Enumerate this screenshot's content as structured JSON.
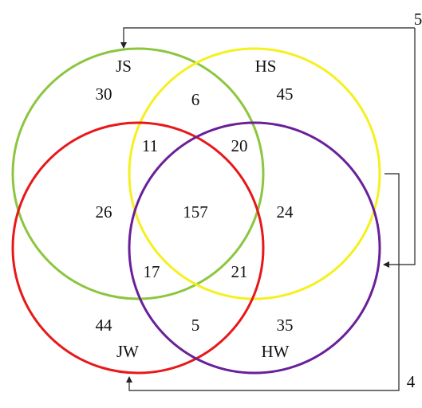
{
  "sets": [
    {
      "label": "JS",
      "color": "#8cc63f"
    },
    {
      "label": "HS",
      "color": "#f5f01e"
    },
    {
      "label": "JW",
      "color": "#e81818"
    },
    {
      "label": "HW",
      "color": "#6a1f9a"
    }
  ],
  "regions": [
    30,
    6,
    45,
    11,
    20,
    26,
    157,
    24,
    17,
    21,
    44,
    5,
    35
  ],
  "connectors": [
    {
      "label": "5"
    },
    {
      "label": "4"
    }
  ]
}
